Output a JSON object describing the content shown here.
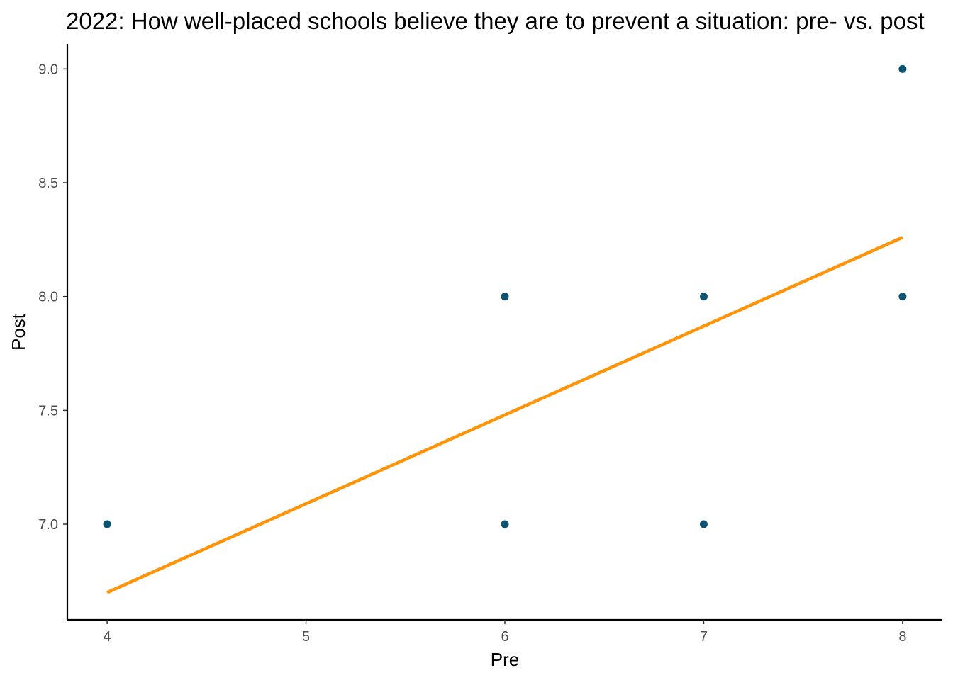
{
  "chart_data": {
    "type": "scatter",
    "title": "2022: How well-placed schools believe they are to prevent a situation: pre- vs. post",
    "xlabel": "Pre",
    "ylabel": "Post",
    "xlim": [
      3.8,
      8.2
    ],
    "ylim": [
      6.58,
      9.11
    ],
    "x_ticks": [
      4,
      5,
      6,
      7,
      8
    ],
    "x_tick_labels": [
      "4",
      "5",
      "6",
      "7",
      "8"
    ],
    "y_ticks": [
      7.0,
      7.5,
      8.0,
      8.5,
      9.0
    ],
    "y_tick_labels": [
      "7.0",
      "7.5",
      "8.0",
      "8.5",
      "9.0"
    ],
    "grid": false,
    "series": [
      {
        "points": [
          {
            "x": 4,
            "y": 7
          },
          {
            "x": 6,
            "y": 7
          },
          {
            "x": 6,
            "y": 8
          },
          {
            "x": 7,
            "y": 7
          },
          {
            "x": 7,
            "y": 8
          },
          {
            "x": 8,
            "y": 8
          },
          {
            "x": 8,
            "y": 9
          }
        ],
        "color": "#0b5273"
      }
    ],
    "trend_line": {
      "type": "linear",
      "start": {
        "x": 4,
        "y": 6.7
      },
      "end": {
        "x": 8,
        "y": 8.26
      },
      "color": "#ff9408"
    }
  }
}
